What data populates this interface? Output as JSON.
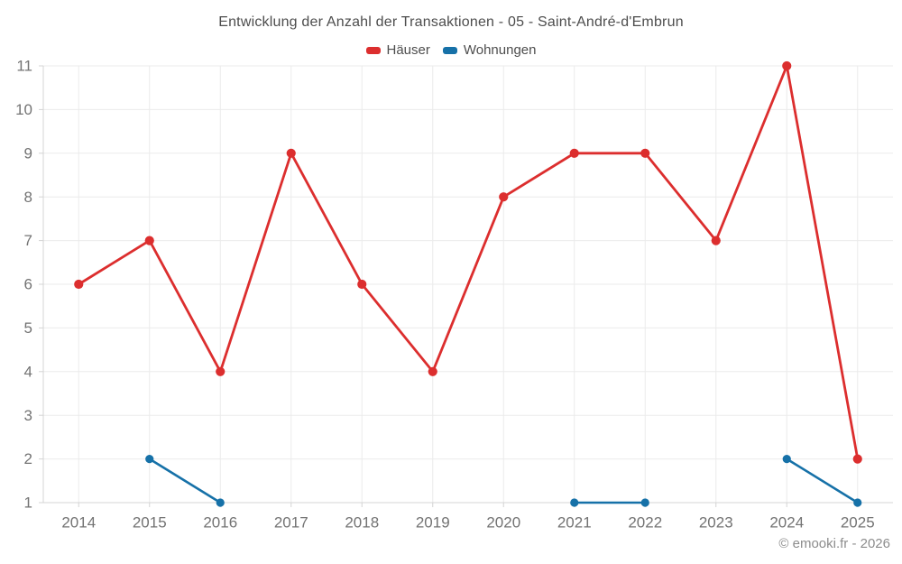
{
  "chart_data": {
    "type": "line",
    "title": "Entwicklung der Anzahl der Transaktionen - 05 - Saint-André-d'Embrun",
    "watermark": "© emooki.fr - 2026",
    "categories": [
      "2014",
      "2015",
      "2016",
      "2017",
      "2018",
      "2019",
      "2020",
      "2021",
      "2022",
      "2023",
      "2024",
      "2025"
    ],
    "series": [
      {
        "name": "Häuser",
        "color": "#dc2e2e",
        "line_width": 2.8,
        "marker_radius": 5.1,
        "values": [
          6,
          7,
          4,
          9,
          6,
          4,
          8,
          9,
          9,
          7,
          11,
          2
        ]
      },
      {
        "name": "Wohnungen",
        "color": "#1671a8",
        "line_width": 2.6,
        "marker_radius": 4.6,
        "values": [
          null,
          2,
          1,
          null,
          null,
          null,
          null,
          1,
          1,
          null,
          2,
          1
        ]
      }
    ],
    "xlabel": "",
    "ylabel": "",
    "ylim": [
      1,
      11
    ],
    "yticks": [
      1,
      2,
      3,
      4,
      5,
      6,
      7,
      8,
      9,
      10,
      11
    ],
    "grid": true,
    "legend_position": "top-center",
    "styles": {
      "grid_color": "#ebebeb",
      "axis_color": "#d4d4d4",
      "tick_label_color": "#737373",
      "tick_label_size": 17,
      "title_color": "#4d4d4d",
      "watermark_color": "#8c8c8c"
    }
  }
}
